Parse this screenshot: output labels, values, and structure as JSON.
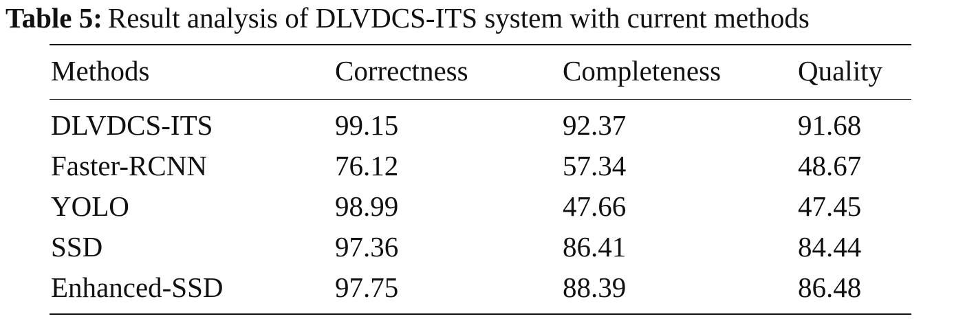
{
  "caption": {
    "label": "Table 5:",
    "title": "Result analysis of DLVDCS-ITS system with current methods"
  },
  "table": {
    "headers": [
      "Methods",
      "Correctness",
      "Completeness",
      "Quality"
    ],
    "rows": [
      [
        "DLVDCS-ITS",
        "99.15",
        "92.37",
        "91.68"
      ],
      [
        "Faster-RCNN",
        "76.12",
        "57.34",
        "48.67"
      ],
      [
        "YOLO",
        "98.99",
        "47.66",
        "47.45"
      ],
      [
        "SSD",
        "97.36",
        "86.41",
        "84.44"
      ],
      [
        "Enhanced-SSD",
        "97.75",
        "88.39",
        "86.48"
      ]
    ]
  }
}
